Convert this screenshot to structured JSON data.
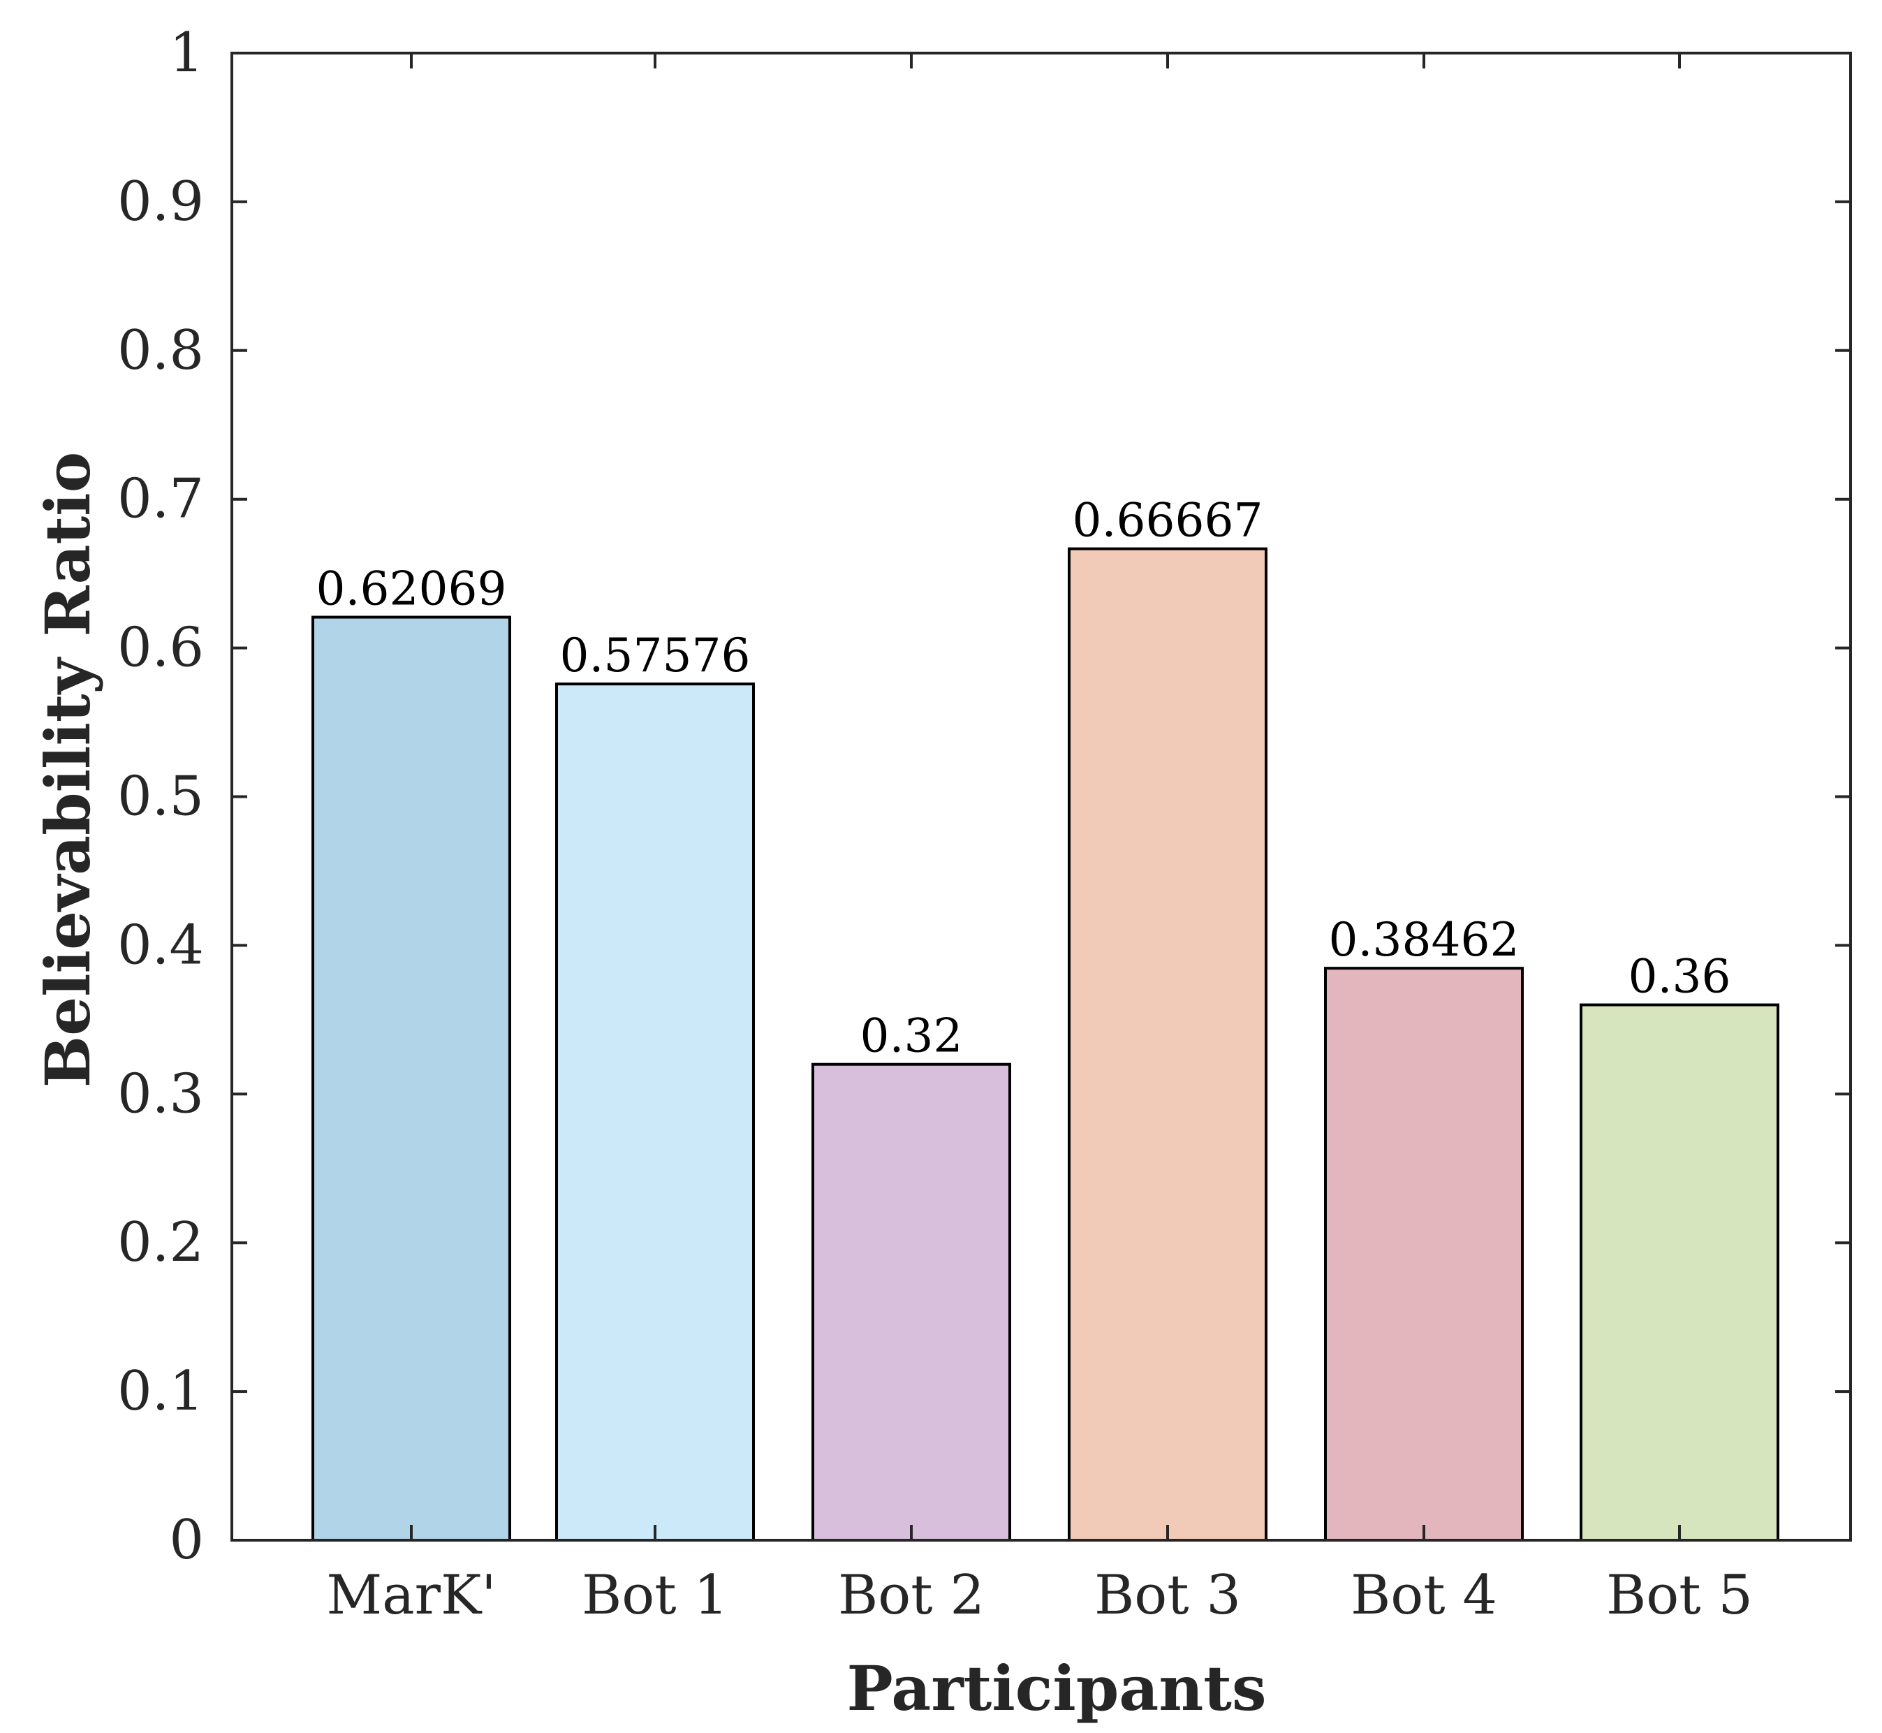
{
  "chart_data": {
    "type": "bar",
    "categories": [
      "MarK'",
      "Bot 1",
      "Bot 2",
      "Bot 3",
      "Bot 4",
      "Bot 5"
    ],
    "values": [
      0.62069,
      0.57576,
      0.32,
      0.66667,
      0.38462,
      0.36
    ],
    "value_labels": [
      "0.62069",
      "0.57576",
      "0.32",
      "0.66667",
      "0.38462",
      "0.36"
    ],
    "colors": [
      "#b1d4e8",
      "#cbe9f8",
      "#d8bfdc",
      "#f1cbb8",
      "#e3b5bd",
      "#d7e5bf"
    ],
    "xlabel": "Participants",
    "ylabel": "Believability Ratio",
    "ylim": [
      0,
      1
    ],
    "yticks": [
      "0",
      "0.1",
      "0.2",
      "0.3",
      "0.4",
      "0.5",
      "0.6",
      "0.7",
      "0.8",
      "0.9",
      "1"
    ],
    "grid": false,
    "box": true
  }
}
